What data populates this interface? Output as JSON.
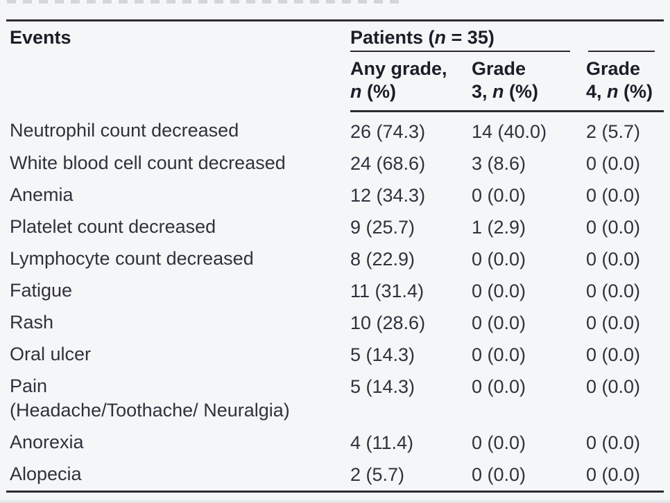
{
  "table": {
    "events_header": "Events",
    "spanner": {
      "pre": "Patients (",
      "italic_n": "n",
      "post": " = 35)"
    },
    "subheaders": {
      "any_grade": {
        "line1": "Any grade,",
        "line2_pre": "",
        "line2_italic": "n",
        "line2_post": " (%)"
      },
      "grade3": {
        "line1": "Grade",
        "line2_pre": "3, ",
        "line2_italic": "n",
        "line2_post": " (%)"
      },
      "grade4": {
        "line1": "Grade",
        "line2_pre": "4, ",
        "line2_italic": "n",
        "line2_post": " (%)"
      }
    },
    "rows": [
      {
        "event": "Neutrophil count decreased",
        "event_line2": "",
        "any_grade": "26 (74.3)",
        "grade3": "14 (40.0)",
        "grade4": "2 (5.7)"
      },
      {
        "event": "White blood cell count decreased",
        "event_line2": "",
        "any_grade": "24 (68.6)",
        "grade3": "3 (8.6)",
        "grade4": "0 (0.0)"
      },
      {
        "event": "Anemia",
        "event_line2": "",
        "any_grade": "12 (34.3)",
        "grade3": "0 (0.0)",
        "grade4": "0 (0.0)"
      },
      {
        "event": "Platelet count decreased",
        "event_line2": "",
        "any_grade": "9 (25.7)",
        "grade3": "1 (2.9)",
        "grade4": "0 (0.0)"
      },
      {
        "event": "Lymphocyte count decreased",
        "event_line2": "",
        "any_grade": "8 (22.9)",
        "grade3": "0 (0.0)",
        "grade4": "0 (0.0)"
      },
      {
        "event": "Fatigue",
        "event_line2": "",
        "any_grade": "11 (31.4)",
        "grade3": "0 (0.0)",
        "grade4": "0 (0.0)"
      },
      {
        "event": "Rash",
        "event_line2": "",
        "any_grade": "10 (28.6)",
        "grade3": "0 (0.0)",
        "grade4": "0 (0.0)"
      },
      {
        "event": "Oral ulcer",
        "event_line2": "",
        "any_grade": "5 (14.3)",
        "grade3": "0 (0.0)",
        "grade4": "0 (0.0)"
      },
      {
        "event": "Pain",
        "event_line2": "(Headache/Toothache/ Neuralgia)",
        "any_grade": "5 (14.3)",
        "grade3": "0 (0.0)",
        "grade4": "0 (0.0)"
      },
      {
        "event": "Anorexia",
        "event_line2": "",
        "any_grade": "4 (11.4)",
        "grade3": "0 (0.0)",
        "grade4": "0 (0.0)"
      },
      {
        "event": "Alopecia",
        "event_line2": "",
        "any_grade": "2 (5.7)",
        "grade3": "0 (0.0)",
        "grade4": "0 (0.0)"
      }
    ]
  },
  "colors": {
    "background": "#f5f6f7",
    "text": "#31313d",
    "header_text": "#1d1d29",
    "rule": "#2b2b2f"
  }
}
